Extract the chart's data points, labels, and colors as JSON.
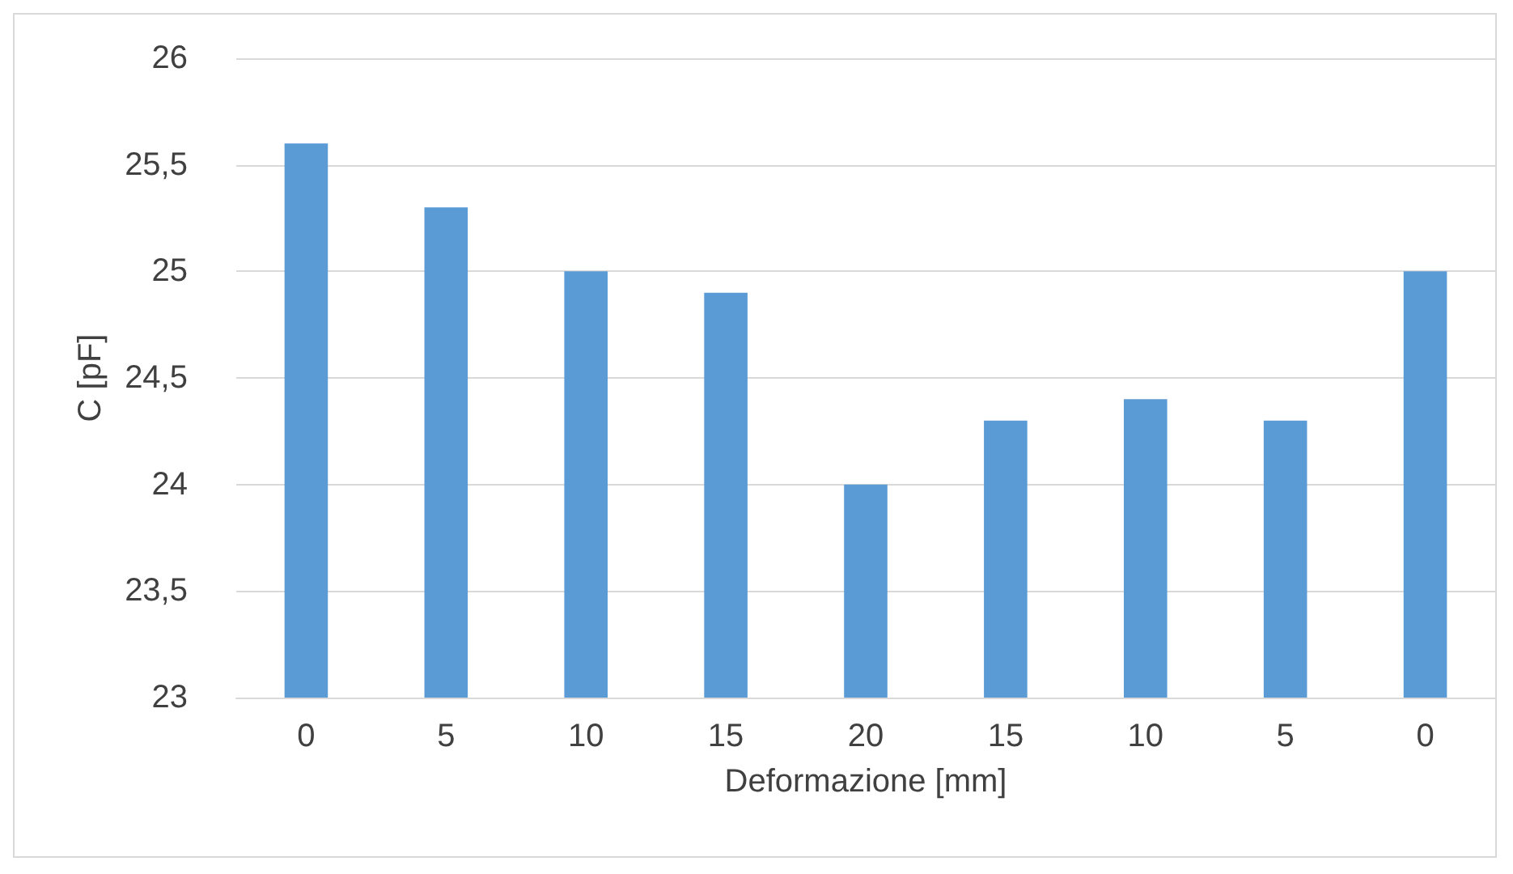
{
  "chart_data": {
    "type": "bar",
    "xlabel": "Deformazione [mm]",
    "ylabel": "C [pF]",
    "categories": [
      "0",
      "5",
      "10",
      "15",
      "20",
      "15",
      "10",
      "5",
      "0"
    ],
    "values": [
      25.6,
      25.3,
      25.0,
      24.9,
      24.0,
      24.3,
      24.4,
      24.3,
      25.0
    ],
    "color": "#5b9bd5",
    "ylim": [
      23,
      26
    ],
    "yticks": [
      {
        "value": 23,
        "label": "23"
      },
      {
        "value": 23.5,
        "label": "23,5"
      },
      {
        "value": 24,
        "label": "24"
      },
      {
        "value": 24.5,
        "label": "24,5"
      },
      {
        "value": 25,
        "label": "25"
      },
      {
        "value": 25.5,
        "label": "25,5"
      },
      {
        "value": 26,
        "label": "26"
      }
    ],
    "grid": "y"
  }
}
